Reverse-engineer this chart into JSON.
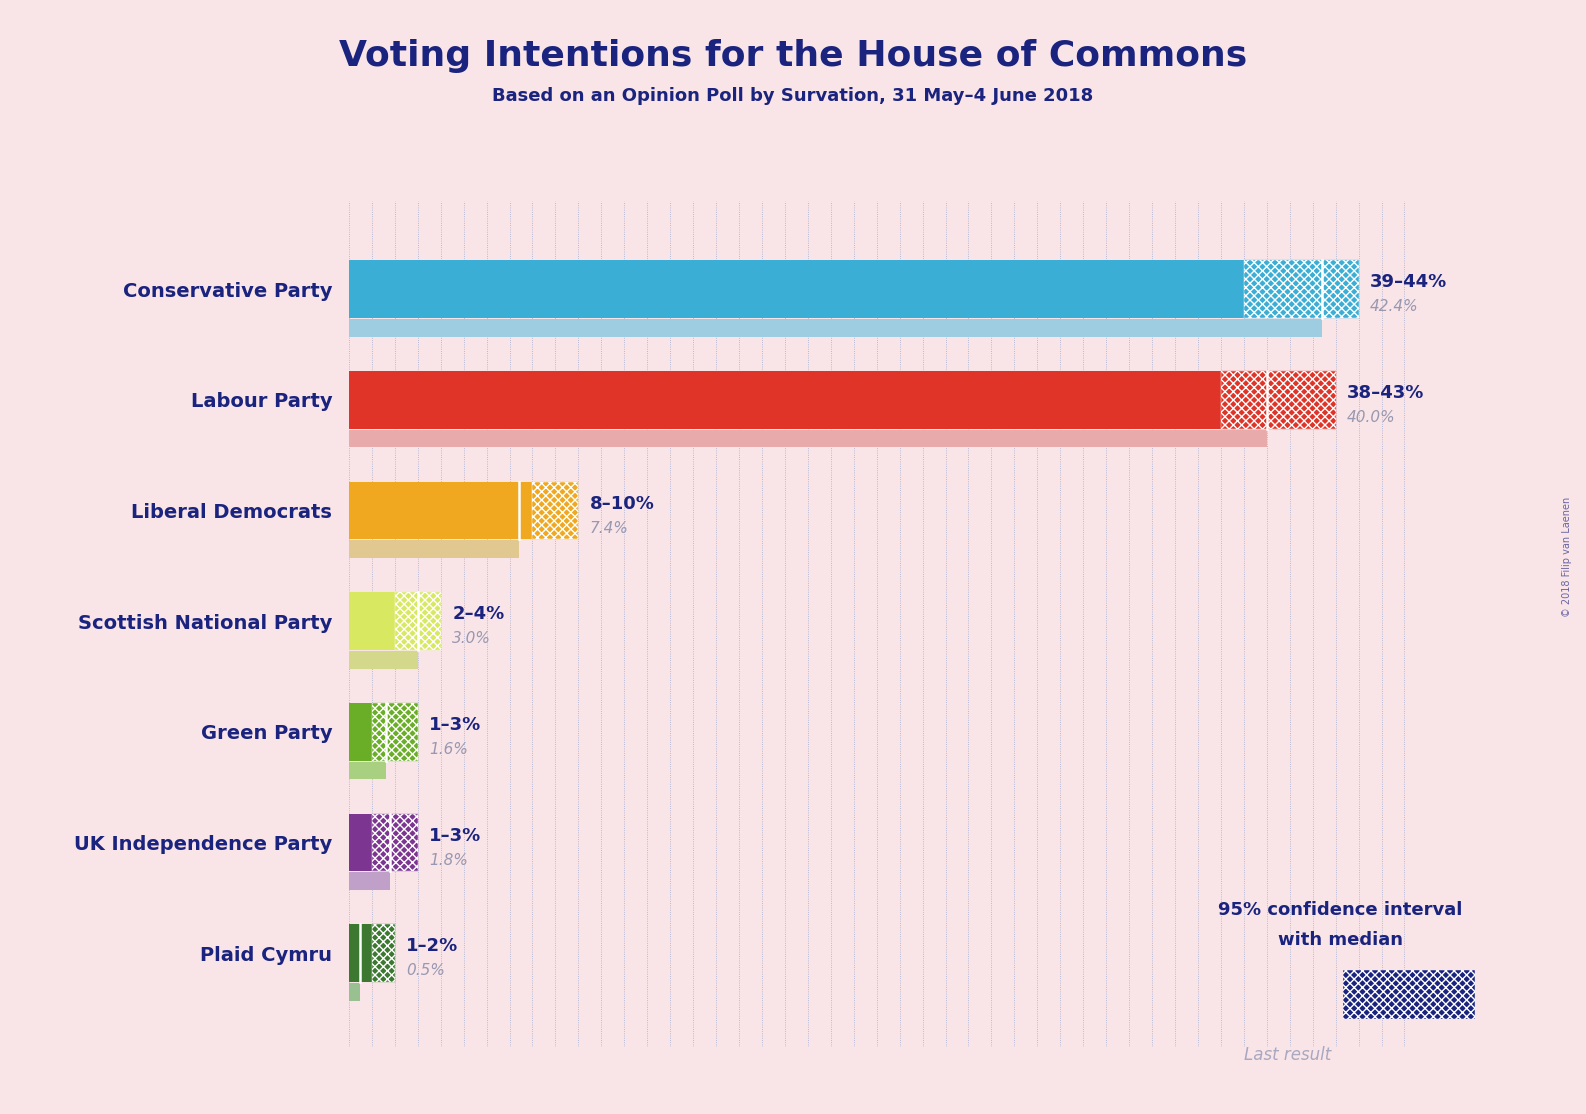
{
  "title": "Voting Intentions for the House of Commons",
  "subtitle": "Based on an Opinion Poll by Survation, 31 May–4 June 2018",
  "background_color": "#f9e4e8",
  "parties": [
    "Conservative Party",
    "Labour Party",
    "Liberal Democrats",
    "Scottish National Party",
    "Green Party",
    "UK Independence Party",
    "Plaid Cymru"
  ],
  "median_values": [
    42.4,
    40.0,
    7.4,
    3.0,
    1.6,
    1.8,
    0.5
  ],
  "ci_low": [
    39,
    38,
    8,
    2,
    1,
    1,
    1
  ],
  "ci_high": [
    44,
    43,
    10,
    4,
    3,
    3,
    2
  ],
  "range_labels": [
    "39–44%",
    "38–43%",
    "8–10%",
    "2–4%",
    "1–3%",
    "1–3%",
    "1–2%"
  ],
  "median_labels": [
    "42.4%",
    "40.0%",
    "7.4%",
    "3.0%",
    "1.6%",
    "1.8%",
    "0.5%"
  ],
  "bar_colors": [
    "#3BAED6",
    "#E03428",
    "#F0A820",
    "#D8E860",
    "#6AAE28",
    "#7C3590",
    "#3C7830"
  ],
  "last_result_colors": [
    "#9ECCE0",
    "#E8AAAA",
    "#E0C890",
    "#D4D88A",
    "#A8D080",
    "#C0A0C8",
    "#98C090"
  ],
  "title_color": "#1A237E",
  "label_color": "#1A237E",
  "range_label_color": "#1A237E",
  "median_label_color": "#9898B0",
  "watermark": "© 2018 Filip van Laenen",
  "legend_text1": "95% confidence interval",
  "legend_text2": "with median",
  "legend_last": "Last result",
  "legend_bar_color": "#1A237E",
  "legend_last_color": "#A8A8C0"
}
